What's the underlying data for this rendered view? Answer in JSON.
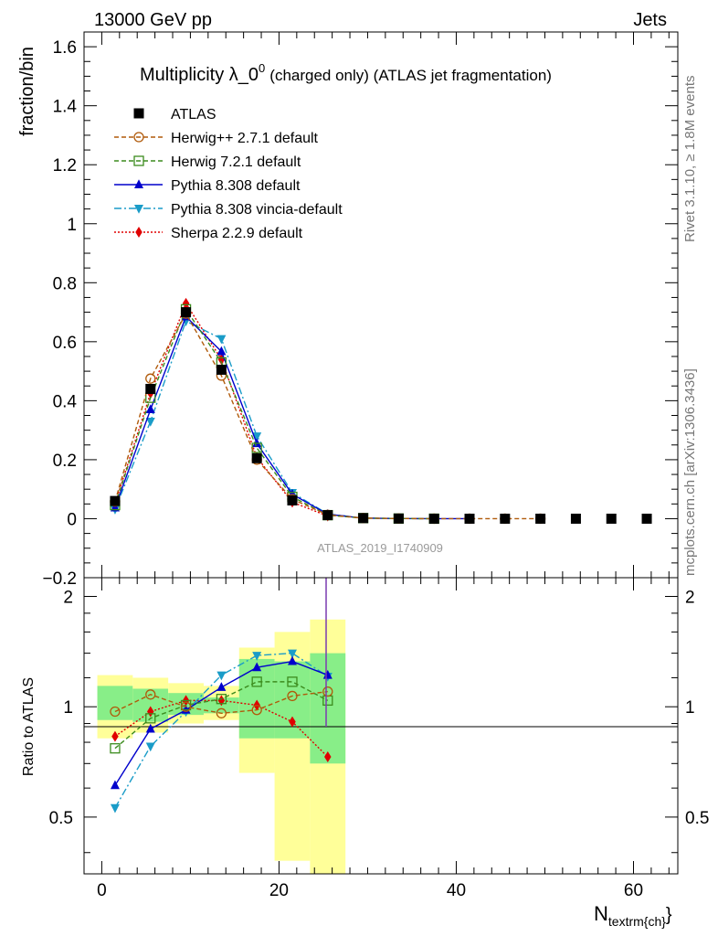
{
  "header": {
    "left": "13000 GeV pp",
    "right": "Jets"
  },
  "side_texts": {
    "rivet": "Rivet 3.1.10, ≥ 1.8M events",
    "site": "mcplots.cern.ch [arXiv:1306.3436]"
  },
  "chart_data": [
    {
      "type": "line",
      "title": "Multiplicity λ_0⁰ (charged only) (ATLAS jet fragmentation)",
      "title_main": "Multiplicity λ_0",
      "title_sup": "0",
      "title_rest": "(charged only) (ATLAS jet fragmentation)",
      "ylabel": "fraction/bin",
      "watermark": "ATLAS_2019_I1740909",
      "xlim": [
        -2.0,
        65.0
      ],
      "ylim": [
        -0.2,
        1.65
      ],
      "yticks": [
        -0.2,
        0,
        0.2,
        0.4,
        0.6,
        0.8,
        1,
        1.2,
        1.4,
        1.6
      ],
      "ytick_labels": [
        "−0.2",
        "0",
        "0.2",
        "0.4",
        "0.6",
        "0.8",
        "1",
        "1.2",
        "1.4",
        "1.6"
      ],
      "series": [
        {
          "name": "ATLAS",
          "color": "#000000",
          "marker": "square",
          "x": [
            1.5,
            5.5,
            9.5,
            13.5,
            17.5,
            21.5,
            25.5,
            29.5,
            33.5,
            37.5,
            41.5,
            45.5,
            49.5,
            53.5,
            57.5,
            61.5
          ],
          "values": [
            0.06,
            0.44,
            0.7,
            0.505,
            0.205,
            0.062,
            0.012,
            0.002,
            0.0005,
            0.0,
            0.0,
            0.0,
            0.0,
            0.0,
            0.0,
            0.0
          ]
        },
        {
          "name": "Herwig++ 2.7.1 default",
          "color": "#b05a0a",
          "marker": "circle-open",
          "dash": "5,3",
          "x": [
            1.5,
            5.5,
            9.5,
            13.5,
            17.5,
            21.5,
            25.5,
            29.5,
            33.5,
            37.5,
            41.5,
            45.5,
            49.5
          ],
          "values": [
            0.058,
            0.475,
            0.695,
            0.485,
            0.2,
            0.066,
            0.013,
            0.002,
            0.0005,
            0.0,
            0.0,
            0.0,
            0.0
          ]
        },
        {
          "name": "Herwig 7.2.1 default",
          "color": "#3c8c1e",
          "marker": "square-open",
          "dash": "5,3",
          "x": [
            1.5,
            5.5,
            9.5,
            13.5,
            17.5,
            21.5,
            25.5,
            29.5,
            33.5,
            37.5
          ],
          "values": [
            0.046,
            0.41,
            0.71,
            0.53,
            0.24,
            0.074,
            0.012,
            0.002,
            0.0005,
            0.0
          ]
        },
        {
          "name": "Pythia 8.308 default",
          "color": "#0000cc",
          "marker": "triangle-up",
          "dash": "",
          "x": [
            1.5,
            5.5,
            9.5,
            13.5,
            17.5,
            21.5,
            25.5,
            29.5,
            33.5,
            37.5,
            41.5
          ],
          "values": [
            0.037,
            0.37,
            0.685,
            0.567,
            0.255,
            0.083,
            0.015,
            0.002,
            0.0005,
            0.0,
            0.0
          ]
        },
        {
          "name": "Pythia 8.308 vincia-default",
          "color": "#1a9cc8",
          "marker": "triangle-down",
          "dash": "8,3,2,3",
          "x": [
            1.5,
            5.5,
            9.5,
            13.5,
            17.5,
            21.5,
            25.5,
            29.5,
            33.5,
            37.5
          ],
          "values": [
            0.032,
            0.33,
            0.67,
            0.61,
            0.28,
            0.088,
            0.016,
            0.002,
            0.0005,
            0.0
          ]
        },
        {
          "name": "Sherpa 2.2.9 default",
          "color": "#e00000",
          "marker": "diamond",
          "dash": "2,2",
          "x": [
            1.5,
            5.5,
            9.5,
            13.5,
            17.5,
            21.5,
            25.5
          ],
          "values": [
            0.05,
            0.425,
            0.73,
            0.54,
            0.208,
            0.056,
            0.009
          ]
        }
      ]
    },
    {
      "type": "line",
      "ylabel": "Ratio to ATLAS",
      "xlabel": "N_textrm{ch}",
      "xlabel_main": "N",
      "xlabel_sub": "textrm{ch}",
      "xlabel_close": "}",
      "xlim": [
        -2.0,
        65.0
      ],
      "ylim": [
        0.35,
        2.25
      ],
      "ylog": true,
      "xticks": [
        0,
        20,
        40,
        60
      ],
      "xtick_labels": [
        "0",
        "20",
        "40",
        "60"
      ],
      "yticks": [
        0.5,
        1,
        2
      ],
      "ytick_labels": [
        "0.5",
        "1",
        "2"
      ],
      "bands": {
        "bins": [
          [
            -0.5,
            3.5
          ],
          [
            3.5,
            7.5
          ],
          [
            7.5,
            11.5
          ],
          [
            11.5,
            15.5
          ],
          [
            15.5,
            19.5
          ],
          [
            19.5,
            23.5
          ],
          [
            23.5,
            27.5
          ]
        ],
        "total": [
          [
            0.82,
            1.22
          ],
          [
            0.85,
            1.2
          ],
          [
            0.9,
            1.16
          ],
          [
            0.92,
            1.14
          ],
          [
            0.66,
            1.45
          ],
          [
            0.38,
            1.6
          ],
          [
            0.35,
            1.73
          ]
        ],
        "stat": [
          [
            0.92,
            1.14
          ],
          [
            0.91,
            1.12
          ],
          [
            0.95,
            1.09
          ],
          [
            0.96,
            1.06
          ],
          [
            0.82,
            1.35
          ],
          [
            0.82,
            1.33
          ],
          [
            0.7,
            1.4
          ]
        ]
      },
      "series": [
        {
          "name": "Herwig++ 2.7.1 default",
          "color": "#b05a0a",
          "marker": "circle-open",
          "dash": "5,3",
          "x": [
            1.5,
            5.5,
            9.5,
            13.5,
            17.5,
            21.5,
            25.5
          ],
          "values": [
            0.97,
            1.08,
            1.0,
            0.96,
            0.98,
            1.07,
            1.1
          ]
        },
        {
          "name": "Herwig 7.2.1 default",
          "color": "#3c8c1e",
          "marker": "square-open",
          "dash": "5,3",
          "x": [
            1.5,
            5.5,
            9.5,
            13.5,
            17.5,
            21.5,
            25.5
          ],
          "values": [
            0.77,
            0.93,
            1.01,
            1.05,
            1.17,
            1.17,
            1.04
          ]
        },
        {
          "name": "Pythia 8.308 default",
          "color": "#0000cc",
          "marker": "triangle-up",
          "dash": "",
          "x": [
            1.5,
            5.5,
            9.5,
            13.5,
            17.5,
            21.5,
            25.5
          ],
          "values": [
            0.61,
            0.87,
            0.98,
            1.13,
            1.28,
            1.33,
            1.22
          ]
        },
        {
          "name": "Pythia 8.308 vincia-default",
          "color": "#1a9cc8",
          "marker": "triangle-down",
          "dash": "8,3,2,3",
          "x": [
            1.5,
            5.5,
            9.5,
            13.5,
            17.5,
            21.5,
            25.5
          ],
          "values": [
            0.53,
            0.78,
            0.97,
            1.22,
            1.38,
            1.4,
            1.21
          ]
        },
        {
          "name": "Sherpa 2.2.9 default",
          "color": "#e00000",
          "marker": "diamond",
          "dash": "2,2",
          "x": [
            1.5,
            5.5,
            9.5,
            13.5,
            17.5,
            21.5,
            25.5
          ],
          "values": [
            0.83,
            0.97,
            1.04,
            1.04,
            1.01,
            0.91,
            0.73
          ]
        }
      ]
    }
  ]
}
